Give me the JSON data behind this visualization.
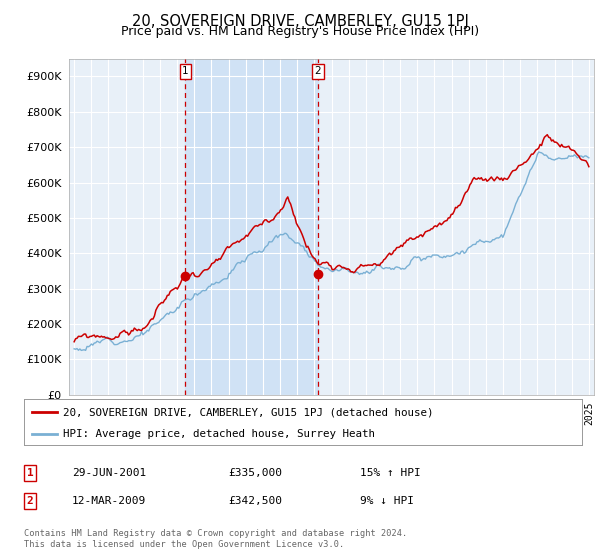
{
  "title": "20, SOVEREIGN DRIVE, CAMBERLEY, GU15 1PJ",
  "subtitle": "Price paid vs. HM Land Registry's House Price Index (HPI)",
  "ylim": [
    0,
    950000
  ],
  "yticks": [
    0,
    100000,
    200000,
    300000,
    400000,
    500000,
    600000,
    700000,
    800000,
    900000
  ],
  "ytick_labels": [
    "£0",
    "£100K",
    "£200K",
    "£300K",
    "£400K",
    "£500K",
    "£600K",
    "£700K",
    "£800K",
    "£900K"
  ],
  "plot_bg_color": "#e8f0f8",
  "shade_color": "#d0e2f5",
  "grid_color": "#c8d4e0",
  "line1_color": "#cc0000",
  "line2_color": "#7ab0d4",
  "sale1_date": 2001.49,
  "sale1_price": 335000,
  "sale2_date": 2009.19,
  "sale2_price": 342500,
  "legend_line1": "20, SOVEREIGN DRIVE, CAMBERLEY, GU15 1PJ (detached house)",
  "legend_line2": "HPI: Average price, detached house, Surrey Heath",
  "table_row1": [
    "1",
    "29-JUN-2001",
    "£335,000",
    "15% ↑ HPI"
  ],
  "table_row2": [
    "2",
    "12-MAR-2009",
    "£342,500",
    "9% ↓ HPI"
  ],
  "footer": "Contains HM Land Registry data © Crown copyright and database right 2024.\nThis data is licensed under the Open Government Licence v3.0.",
  "title_fontsize": 10.5,
  "subtitle_fontsize": 9
}
